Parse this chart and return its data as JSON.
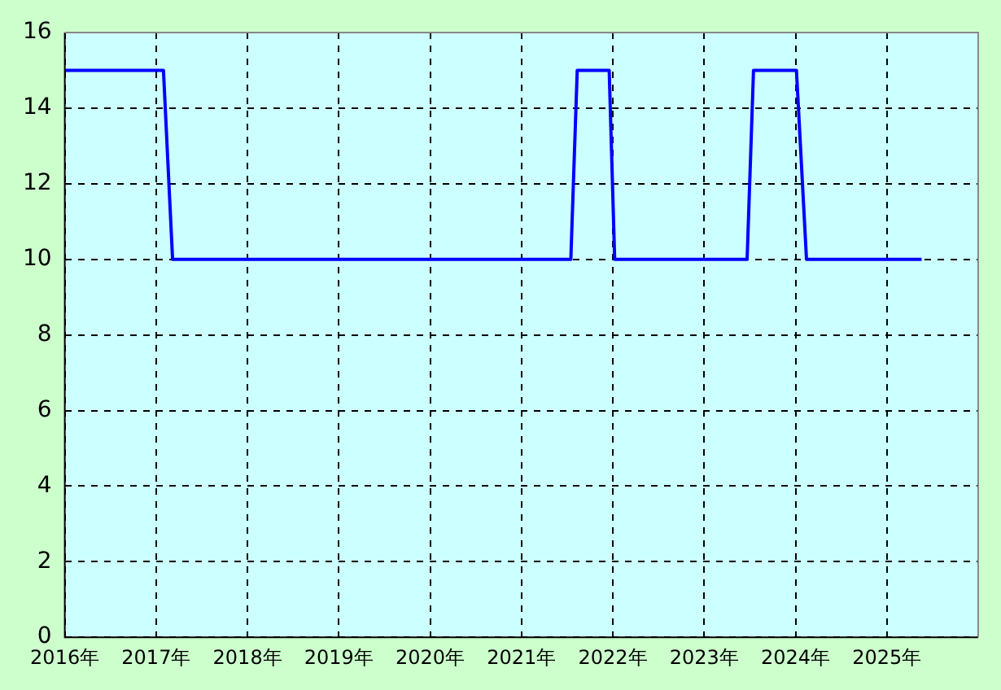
{
  "chart_data": {
    "type": "line",
    "x": [
      2016.0,
      2017.08,
      2017.18,
      2021.54,
      2021.61,
      2021.96,
      2022.02,
      2023.47,
      2023.54,
      2024.01,
      2024.12,
      2025.38
    ],
    "series": [
      {
        "color": "#0000ff",
        "values": [
          15,
          15,
          10,
          10,
          15,
          15,
          10,
          10,
          15,
          15,
          10,
          10
        ]
      }
    ],
    "xlim": [
      2016,
      2026
    ],
    "xticks": [
      {
        "value": 2016,
        "label": "2016年"
      },
      {
        "value": 2017,
        "label": "2017年"
      },
      {
        "value": 2018,
        "label": "2018年"
      },
      {
        "value": 2019,
        "label": "2019年"
      },
      {
        "value": 2020,
        "label": "2020年"
      },
      {
        "value": 2021,
        "label": "2021年"
      },
      {
        "value": 2022,
        "label": "2022年"
      },
      {
        "value": 2023,
        "label": "2023年"
      },
      {
        "value": 2024,
        "label": "2024年"
      },
      {
        "value": 2025,
        "label": "2025年"
      },
      {
        "value": 2026,
        "label": null
      }
    ],
    "ylim": [
      0,
      16
    ],
    "yticks": [
      0,
      2,
      4,
      6,
      8,
      10,
      12,
      14,
      16
    ],
    "grid": true,
    "legend": false,
    "marker": "none",
    "line_style": "solid"
  }
}
